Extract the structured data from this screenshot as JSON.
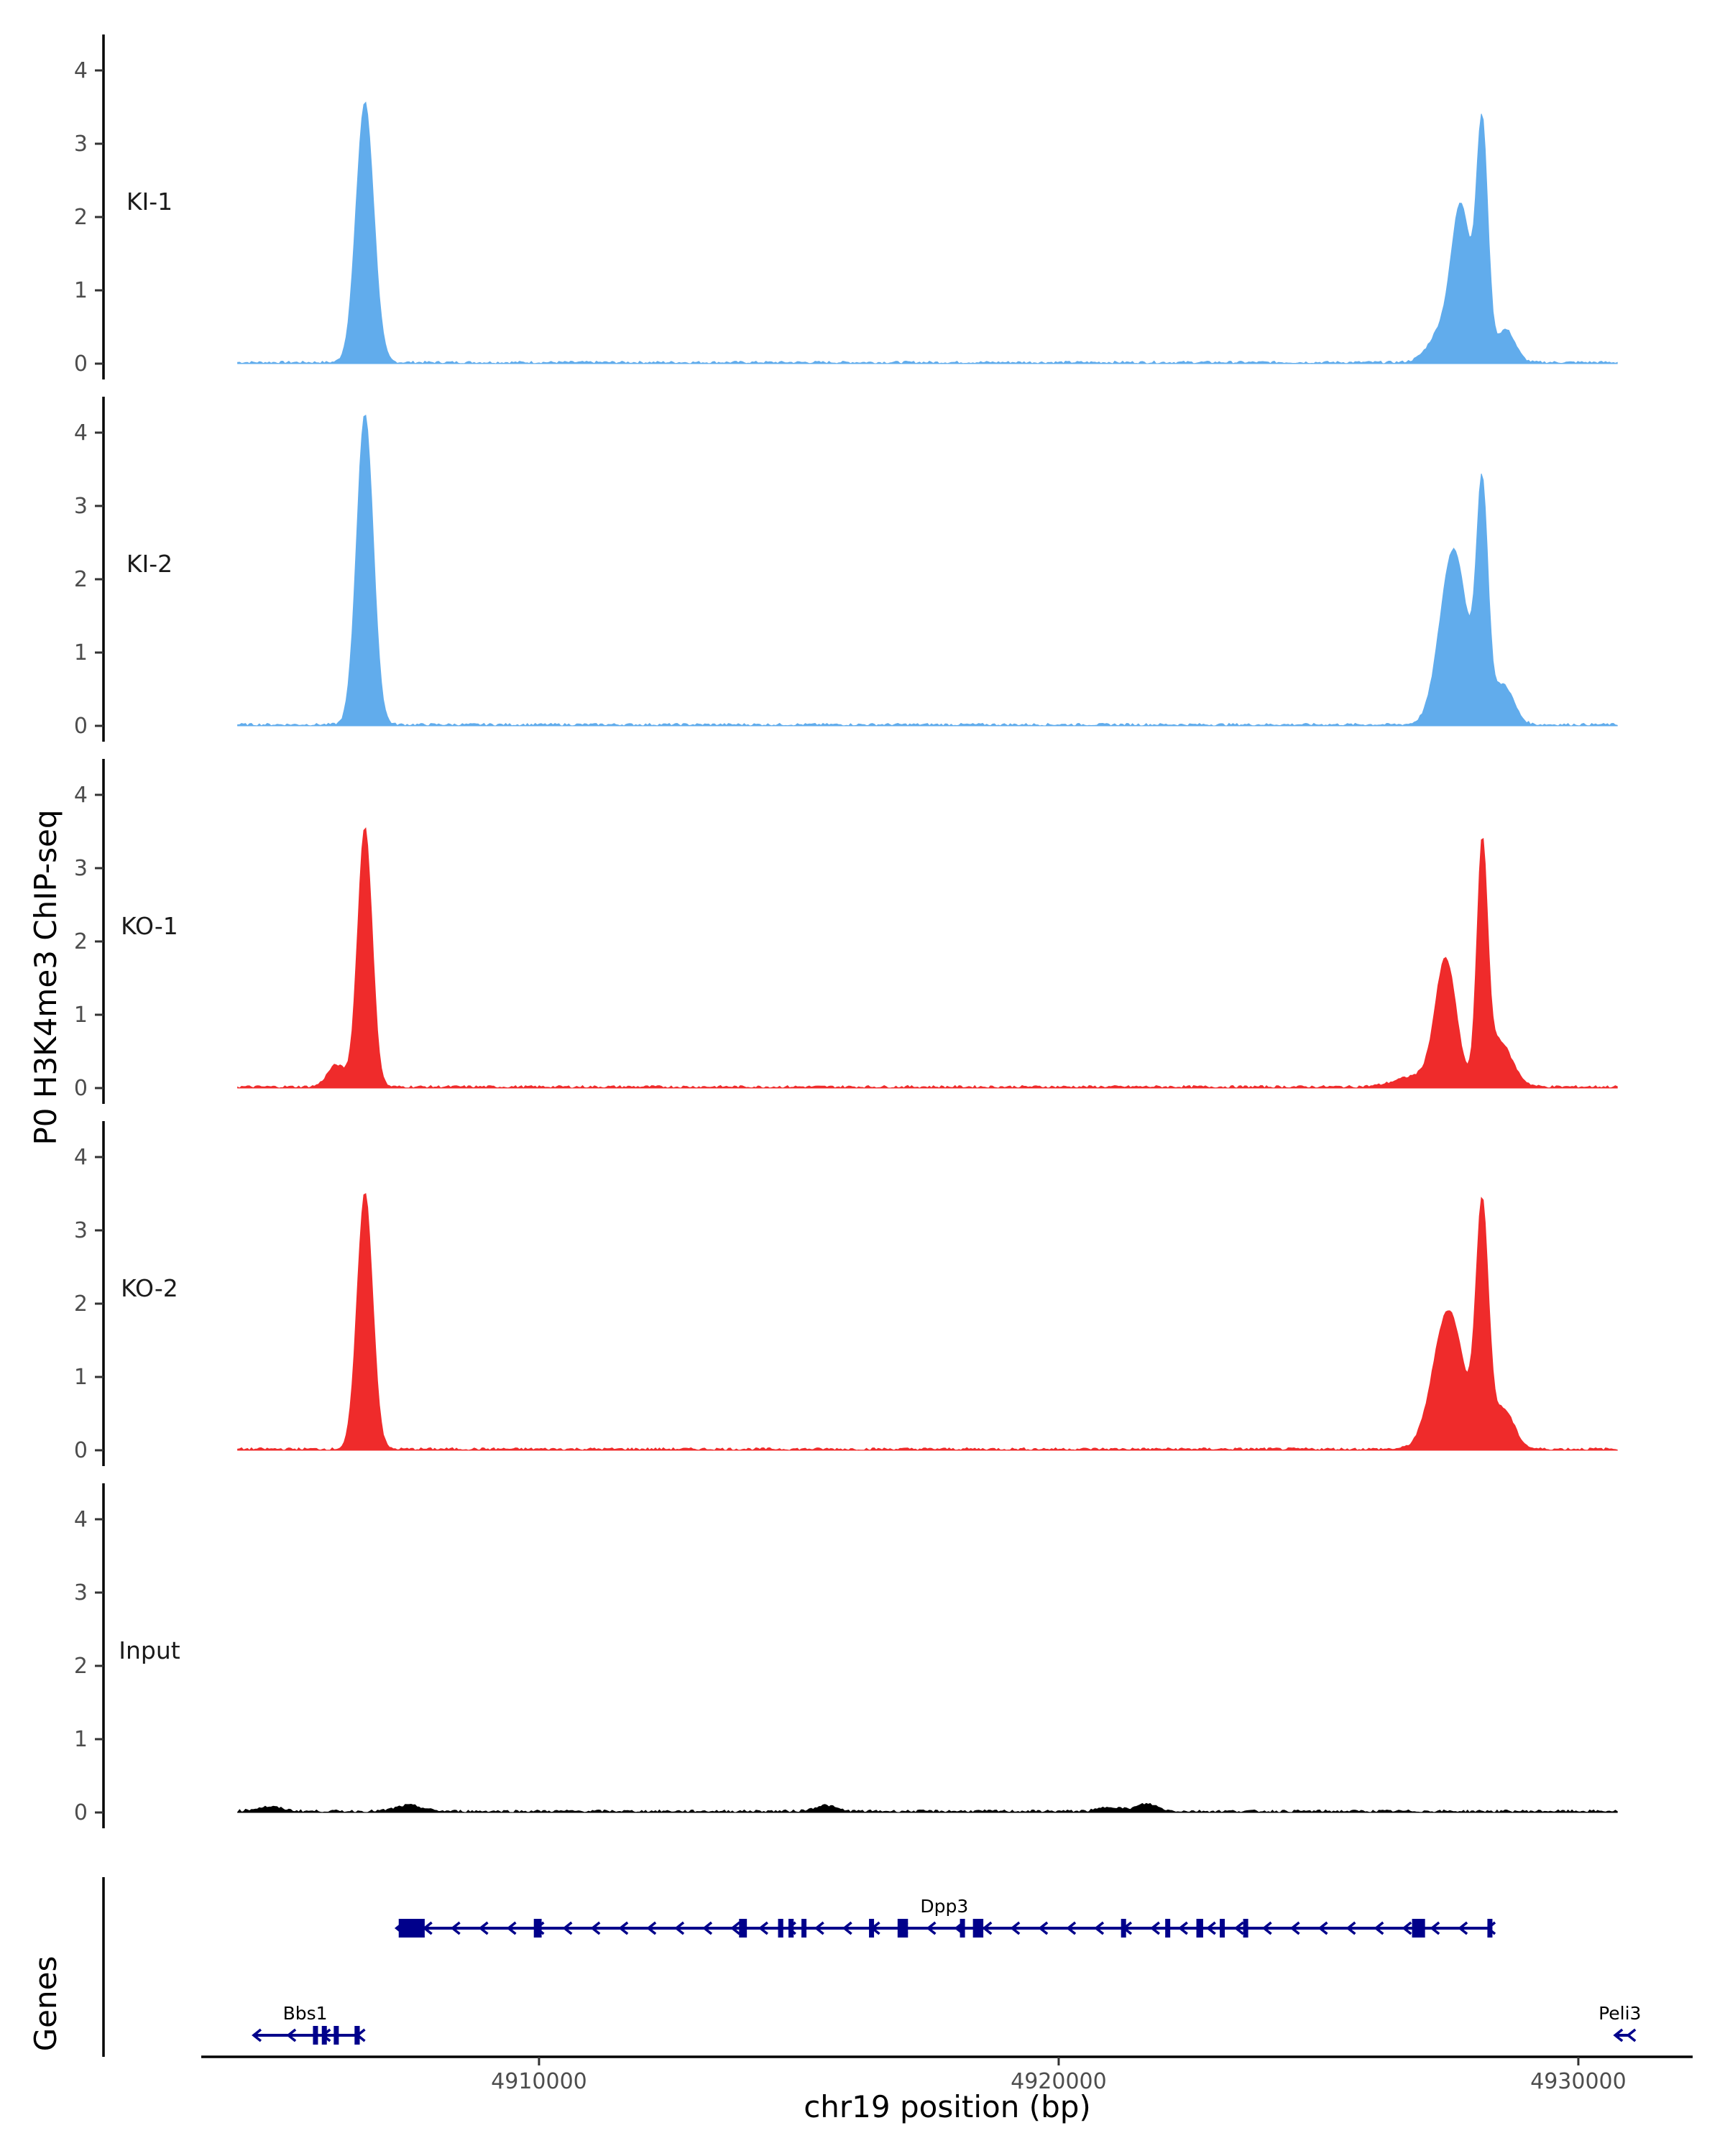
{
  "chart_data": {
    "type": "area",
    "title": "",
    "ylabel": "P0 H3K4me3 ChIP-seq",
    "xlabel": "chr19 position (bp)",
    "genes_label": "Genes",
    "xlim": [
      4903500,
      4932200
    ],
    "ylim": [
      0,
      4.5
    ],
    "yticks": [
      0,
      1,
      2,
      3,
      4
    ],
    "xticks": [
      4910000,
      4920000,
      4930000
    ],
    "xtick_labels": [
      "4910000",
      "4920000",
      "4930000"
    ],
    "tracks": [
      {
        "name": "KI-1",
        "color": "#61acec",
        "peaks": [
          {
            "center": 4906650,
            "height": 3.55,
            "sigma": 170
          },
          {
            "center": 4927400,
            "height": 0.45,
            "sigma": 260
          },
          {
            "center": 4927750,
            "height": 2.0,
            "sigma": 180
          },
          {
            "center": 4928150,
            "height": 3.2,
            "sigma": 110
          },
          {
            "center": 4928600,
            "height": 0.45,
            "sigma": 180
          }
        ]
      },
      {
        "name": "KI-2",
        "color": "#61acec",
        "peaks": [
          {
            "center": 4906650,
            "height": 4.25,
            "sigma": 160
          },
          {
            "center": 4927600,
            "height": 2.4,
            "sigma": 260
          },
          {
            "center": 4928150,
            "height": 3.1,
            "sigma": 110
          },
          {
            "center": 4928550,
            "height": 0.55,
            "sigma": 200
          }
        ]
      },
      {
        "name": "KO-1",
        "color": "#ef2b2b",
        "peaks": [
          {
            "center": 4906650,
            "height": 3.55,
            "sigma": 140
          },
          {
            "center": 4906100,
            "height": 0.3,
            "sigma": 170
          },
          {
            "center": 4927450,
            "height": 1.7,
            "sigma": 200
          },
          {
            "center": 4928150,
            "height": 3.1,
            "sigma": 100
          },
          {
            "center": 4928450,
            "height": 0.65,
            "sigma": 260
          },
          {
            "center": 4926900,
            "height": 0.15,
            "sigma": 400
          }
        ]
      },
      {
        "name": "KO-2",
        "color": "#ef2b2b",
        "peaks": [
          {
            "center": 4906650,
            "height": 3.5,
            "sigma": 150
          },
          {
            "center": 4927500,
            "height": 1.9,
            "sigma": 290
          },
          {
            "center": 4928150,
            "height": 3.2,
            "sigma": 120
          },
          {
            "center": 4928550,
            "height": 0.55,
            "sigma": 210
          }
        ]
      },
      {
        "name": "Input",
        "color": "#000000",
        "peaks": [
          {
            "center": 4904800,
            "height": 0.06,
            "sigma": 250
          },
          {
            "center": 4907500,
            "height": 0.08,
            "sigma": 250
          },
          {
            "center": 4915500,
            "height": 0.08,
            "sigma": 200
          },
          {
            "center": 4921700,
            "height": 0.1,
            "sigma": 200
          },
          {
            "center": 4921000,
            "height": 0.06,
            "sigma": 200
          }
        ]
      }
    ],
    "genes": [
      {
        "name": "Dpp3",
        "row": 1,
        "start": 4907300,
        "end": 4928300,
        "strand": "-",
        "exons": [
          [
            4907300,
            4907800
          ],
          [
            4909900,
            4910050
          ],
          [
            4913850,
            4914000
          ],
          [
            4914600,
            4914700
          ],
          [
            4914800,
            4914900
          ],
          [
            4915050,
            4915130
          ],
          [
            4916350,
            4916430
          ],
          [
            4916900,
            4917100
          ],
          [
            4918100,
            4918180
          ],
          [
            4918350,
            4918550
          ],
          [
            4921200,
            4921280
          ],
          [
            4922050,
            4922130
          ],
          [
            4922650,
            4922780
          ],
          [
            4923100,
            4923180
          ],
          [
            4923550,
            4923630
          ],
          [
            4926800,
            4927050
          ],
          [
            4928250,
            4928300
          ]
        ],
        "label_pos": 4917800
      },
      {
        "name": "Bbs1",
        "row": 2,
        "start": 4904550,
        "end": 4906550,
        "strand": "-",
        "exons": [
          [
            4905650,
            4905720
          ],
          [
            4905820,
            4905880
          ],
          [
            4906050,
            4906130
          ],
          [
            4906450,
            4906550
          ]
        ],
        "label_pos": 4905500
      },
      {
        "name": "Peli3",
        "row": 2,
        "start": 4930750,
        "end": 4931000,
        "strand": "-",
        "exons": [],
        "label_pos": 4930800
      }
    ]
  }
}
